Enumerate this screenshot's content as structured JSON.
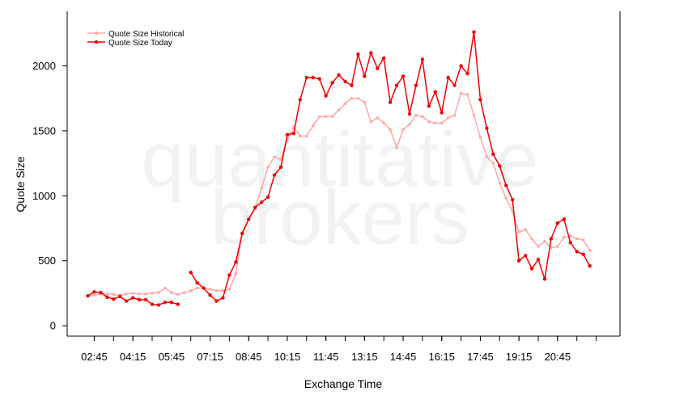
{
  "chart_data": {
    "type": "line",
    "title": "",
    "xlabel": "Exchange Time",
    "ylabel": "Quote Size",
    "watermark": [
      "quantitative",
      "brokers"
    ],
    "x_tick_labels": [
      "02:45",
      "04:15",
      "05:45",
      "07:15",
      "08:45",
      "10:15",
      "11:45",
      "13:15",
      "14:45",
      "16:15",
      "17:45",
      "19:15",
      "20:45"
    ],
    "y_ticks": [
      0,
      500,
      1000,
      1500,
      2000
    ],
    "ylim": [
      -80,
      2420
    ],
    "x_start": "02:15",
    "x_step_minutes": 15,
    "legend_position": "top-left",
    "grid": false,
    "series": [
      {
        "name": "Quote Size Historical",
        "color": "#ffaaaa",
        "values": [
          230,
          235,
          245,
          245,
          240,
          235,
          245,
          250,
          245,
          245,
          250,
          255,
          290,
          255,
          240,
          255,
          270,
          290,
          290,
          280,
          270,
          270,
          280,
          400,
          720,
          820,
          900,
          1060,
          1220,
          1300,
          1280,
          1430,
          1530,
          1460,
          1460,
          1540,
          1610,
          1610,
          1610,
          1660,
          1710,
          1750,
          1750,
          1720,
          1570,
          1600,
          1560,
          1510,
          1370,
          1510,
          1550,
          1620,
          1610,
          1570,
          1560,
          1560,
          1600,
          1620,
          1790,
          1780,
          1620,
          1450,
          1300,
          1250,
          1100,
          980,
          880,
          720,
          740,
          670,
          610,
          650,
          600,
          610,
          680,
          690,
          670,
          660,
          580
        ]
      },
      {
        "name": "Quote Size Today",
        "color": "#ee0000",
        "values": [
          230,
          260,
          255,
          220,
          205,
          225,
          190,
          215,
          200,
          200,
          165,
          160,
          180,
          180,
          165,
          null,
          410,
          330,
          290,
          235,
          190,
          215,
          390,
          490,
          710,
          820,
          910,
          950,
          990,
          1160,
          1220,
          1470,
          1480,
          1740,
          1910,
          1910,
          1900,
          1770,
          1870,
          1930,
          1880,
          1850,
          2090,
          1920,
          2100,
          1980,
          2060,
          1720,
          1850,
          1920,
          1630,
          1850,
          2050,
          1690,
          1800,
          1640,
          1910,
          1850,
          2000,
          1940,
          2260,
          1740,
          1520,
          1320,
          1230,
          1080,
          970,
          500,
          540,
          440,
          510,
          360,
          670,
          790,
          820,
          640,
          570,
          550,
          460
        ]
      }
    ]
  }
}
